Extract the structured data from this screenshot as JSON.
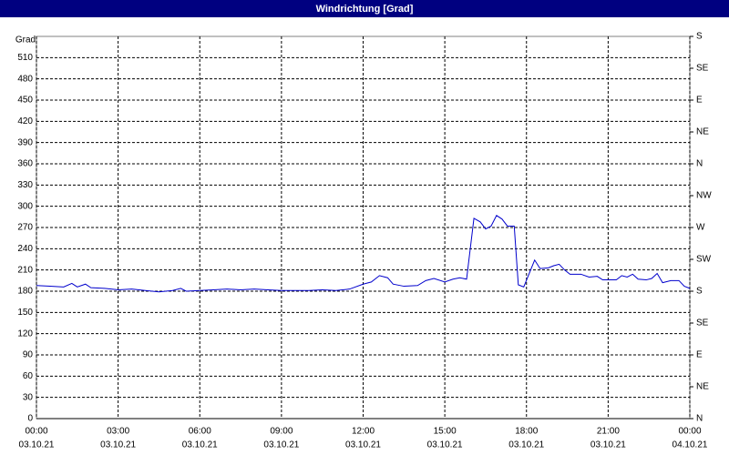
{
  "chart_data": {
    "type": "line",
    "title": "Windrichtung [Grad]",
    "y_label": "Grad",
    "x": [
      0,
      0.5,
      1,
      1.3,
      1.5,
      1.8,
      2,
      2.5,
      3,
      3.5,
      4,
      4.5,
      5,
      5.3,
      5.5,
      6,
      6.5,
      7,
      7.5,
      8,
      8.5,
      9,
      9.5,
      10,
      10.5,
      11,
      11.5,
      12,
      12.3,
      12.6,
      12.9,
      13.1,
      13.5,
      14,
      14.3,
      14.6,
      15,
      15.3,
      15.55,
      15.8,
      16.07,
      16.3,
      16.5,
      16.7,
      16.9,
      17.1,
      17.3,
      17.55,
      17.7,
      17.9,
      18.1,
      18.3,
      18.5,
      18.8,
      19,
      19.2,
      19.4,
      19.6,
      20,
      20.3,
      20.6,
      20.8,
      21,
      21.3,
      21.5,
      21.7,
      21.9,
      22.1,
      22.4,
      22.6,
      22.8,
      23,
      23.3,
      23.6,
      23.8,
      24
    ],
    "series": [
      {
        "name": "Windrichtung",
        "color": "#0000cc",
        "values": [
          188,
          187,
          186,
          191,
          186,
          190,
          185,
          184,
          182,
          183,
          181,
          179,
          181,
          184,
          180,
          181,
          182,
          183,
          182,
          183,
          182,
          181,
          181,
          181,
          182,
          181,
          183,
          190,
          193,
          202,
          199,
          190,
          187,
          188,
          195,
          198,
          193,
          197,
          199,
          197,
          283,
          278,
          268,
          272,
          287,
          282,
          272,
          272,
          189,
          186,
          205,
          224,
          212,
          213,
          216,
          218,
          210,
          204,
          204,
          200,
          201,
          196,
          196,
          196,
          202,
          200,
          204,
          197,
          196,
          198,
          205,
          192,
          195,
          195,
          187,
          184
        ]
      }
    ],
    "xlim": [
      0,
      24
    ],
    "xticks": [
      {
        "value": 0,
        "label": "00:00"
      },
      {
        "value": 3,
        "label": "03:00"
      },
      {
        "value": 6,
        "label": "06:00"
      },
      {
        "value": 9,
        "label": "09:00"
      },
      {
        "value": 12,
        "label": "12:00"
      },
      {
        "value": 15,
        "label": "15:00"
      },
      {
        "value": 18,
        "label": "18:00"
      },
      {
        "value": 21,
        "label": "21:00"
      },
      {
        "value": 24,
        "label": "00:00"
      }
    ],
    "xtick_dates": [
      "03.10.21",
      "03.10.21",
      "03.10.21",
      "03.10.21",
      "03.10.21",
      "03.10.21",
      "03.10.21",
      "03.10.21",
      "04.10.21"
    ],
    "ylim": [
      0,
      540
    ],
    "yticks": [
      0,
      30,
      60,
      90,
      120,
      150,
      180,
      210,
      240,
      270,
      300,
      330,
      360,
      390,
      420,
      450,
      480,
      510
    ],
    "y2lim": [
      0,
      540
    ],
    "y2ticks": [
      {
        "value": 0,
        "label": "N"
      },
      {
        "value": 45,
        "label": "NE"
      },
      {
        "value": 90,
        "label": "E"
      },
      {
        "value": 135,
        "label": "SE"
      },
      {
        "value": 180,
        "label": "S"
      },
      {
        "value": 225,
        "label": "SW"
      },
      {
        "value": 270,
        "label": "W"
      },
      {
        "value": 315,
        "label": "NW"
      },
      {
        "value": 360,
        "label": "N"
      },
      {
        "value": 405,
        "label": "NE"
      },
      {
        "value": 450,
        "label": "E"
      },
      {
        "value": 495,
        "label": "SE"
      },
      {
        "value": 540,
        "label": "S"
      }
    ],
    "grid": true
  }
}
